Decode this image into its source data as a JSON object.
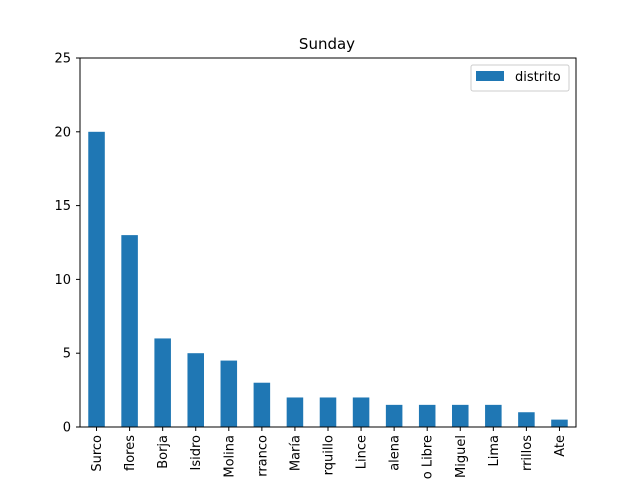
{
  "chart_data": {
    "type": "bar",
    "title": "Sunday",
    "xlabel": "",
    "ylabel": "",
    "categories": [
      "Surco",
      "flores",
      "Borja",
      "Isidro",
      "Molina",
      "rranco",
      "María",
      "rquillo",
      "Lince",
      "alena",
      "o Libre",
      "Miguel",
      "Lima",
      "rrillos",
      "Ate"
    ],
    "series": [
      {
        "name": "distrito",
        "values": [
          20,
          13,
          6,
          5,
          4.5,
          3,
          2,
          2,
          2,
          1.5,
          1.5,
          1.5,
          1.5,
          1,
          0.5
        ]
      }
    ],
    "ylim": [
      0,
      25
    ],
    "yticks": [
      0,
      5,
      10,
      15,
      20,
      25
    ],
    "grid": false,
    "legend_position": "top-right",
    "colors": {
      "bar": "#1f77b4",
      "axis": "#000000",
      "legend_border": "#cccccc"
    }
  }
}
